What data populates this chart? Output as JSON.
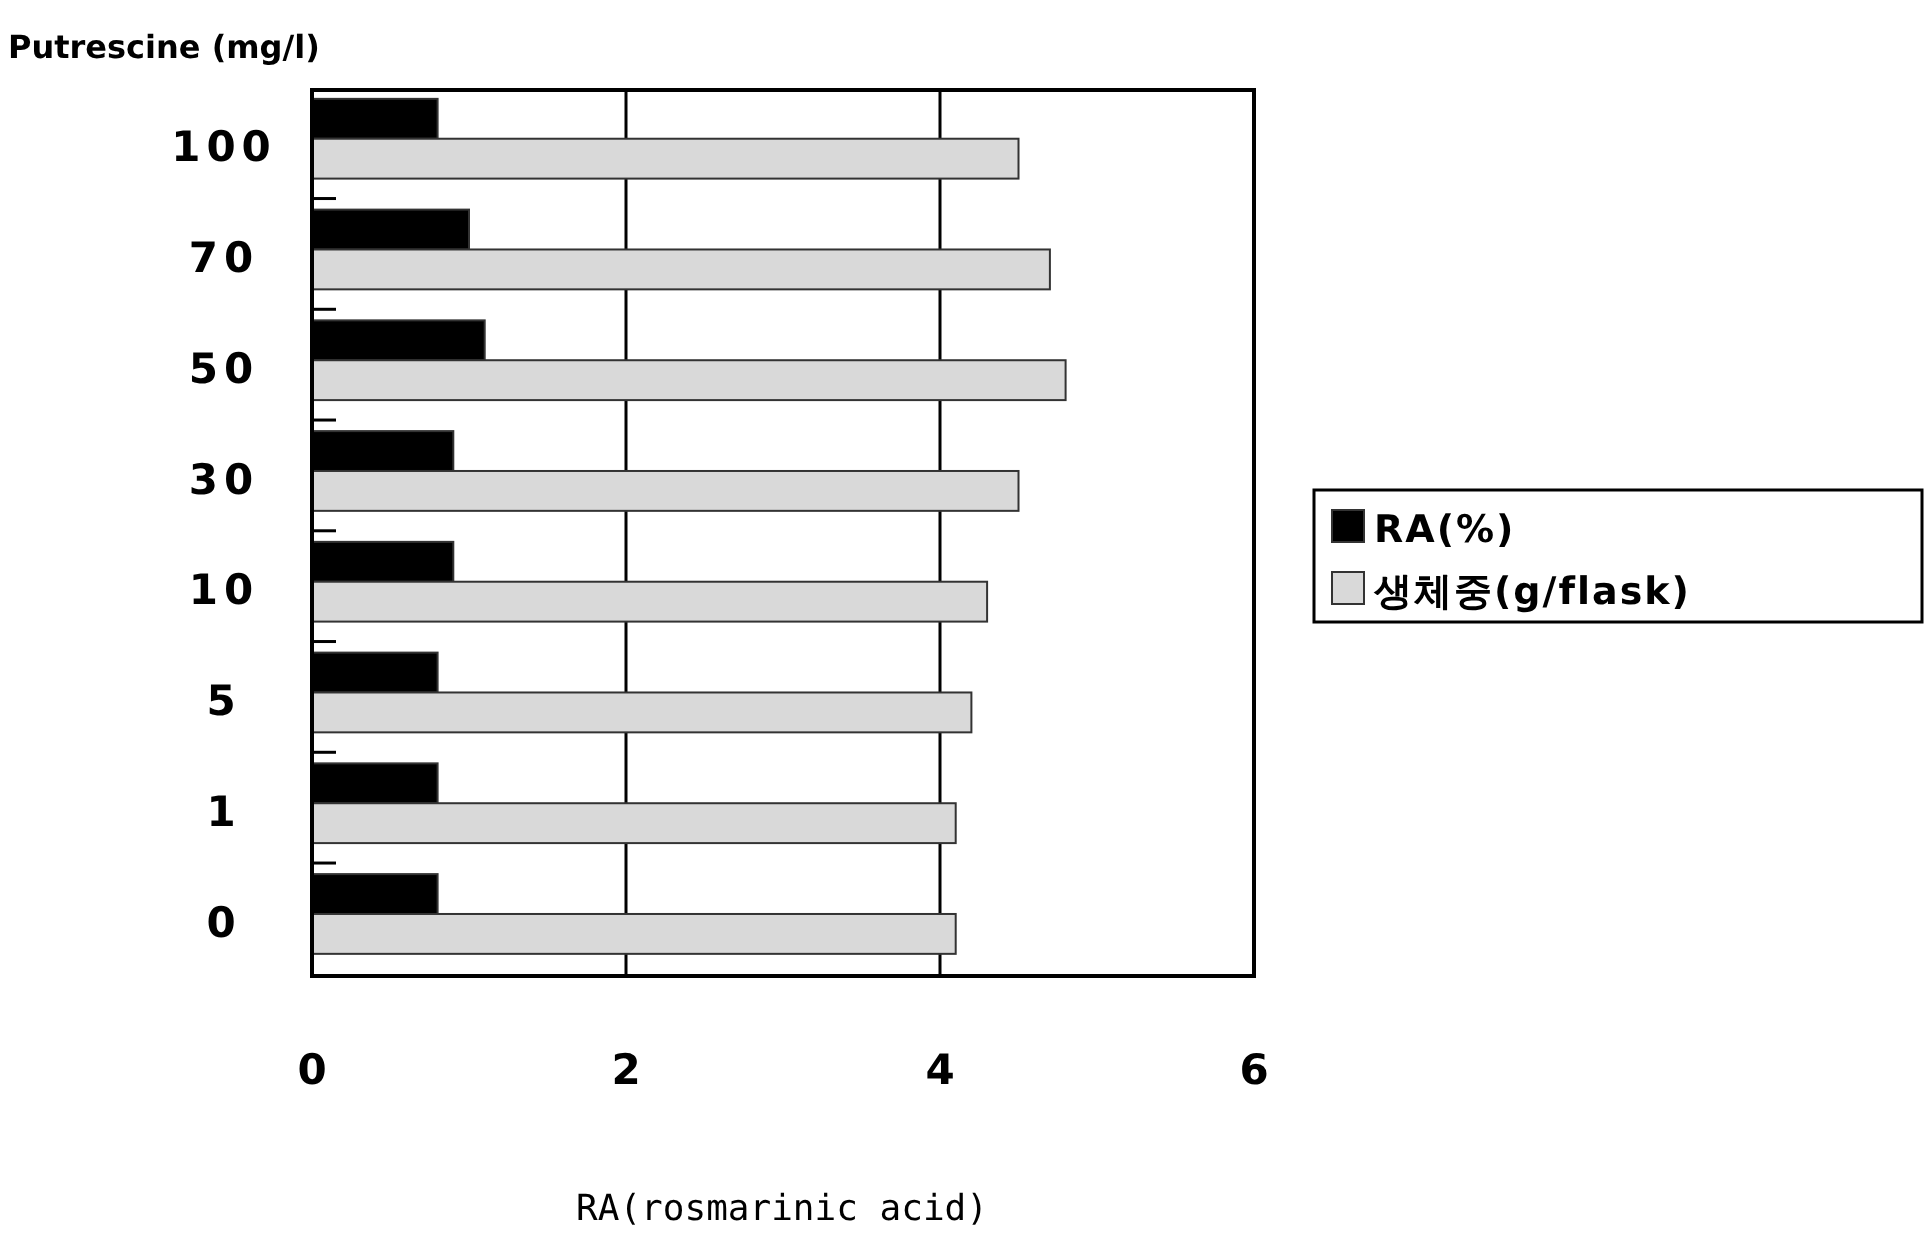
{
  "chart_data": {
    "type": "bar",
    "orientation": "horizontal",
    "ylabel": "Putrescine (mg/l)",
    "xlabel": "RA(rosmarinic acid)",
    "categories": [
      "100",
      "70",
      "50",
      "30",
      "10",
      "5",
      "1",
      "0"
    ],
    "series": [
      {
        "name": "RA(%)",
        "color": "#000000",
        "values": [
          0.8,
          1.0,
          1.1,
          0.9,
          0.9,
          0.8,
          0.8,
          0.8
        ]
      },
      {
        "name": "생체중(g/flask)",
        "color": "#d9d9d9",
        "values": [
          4.5,
          4.7,
          4.8,
          4.5,
          4.3,
          4.2,
          4.1,
          4.1
        ]
      }
    ],
    "xlim": [
      0,
      6
    ],
    "xticks": [
      0,
      2,
      4,
      6
    ],
    "grid": "x",
    "legend": "right"
  }
}
